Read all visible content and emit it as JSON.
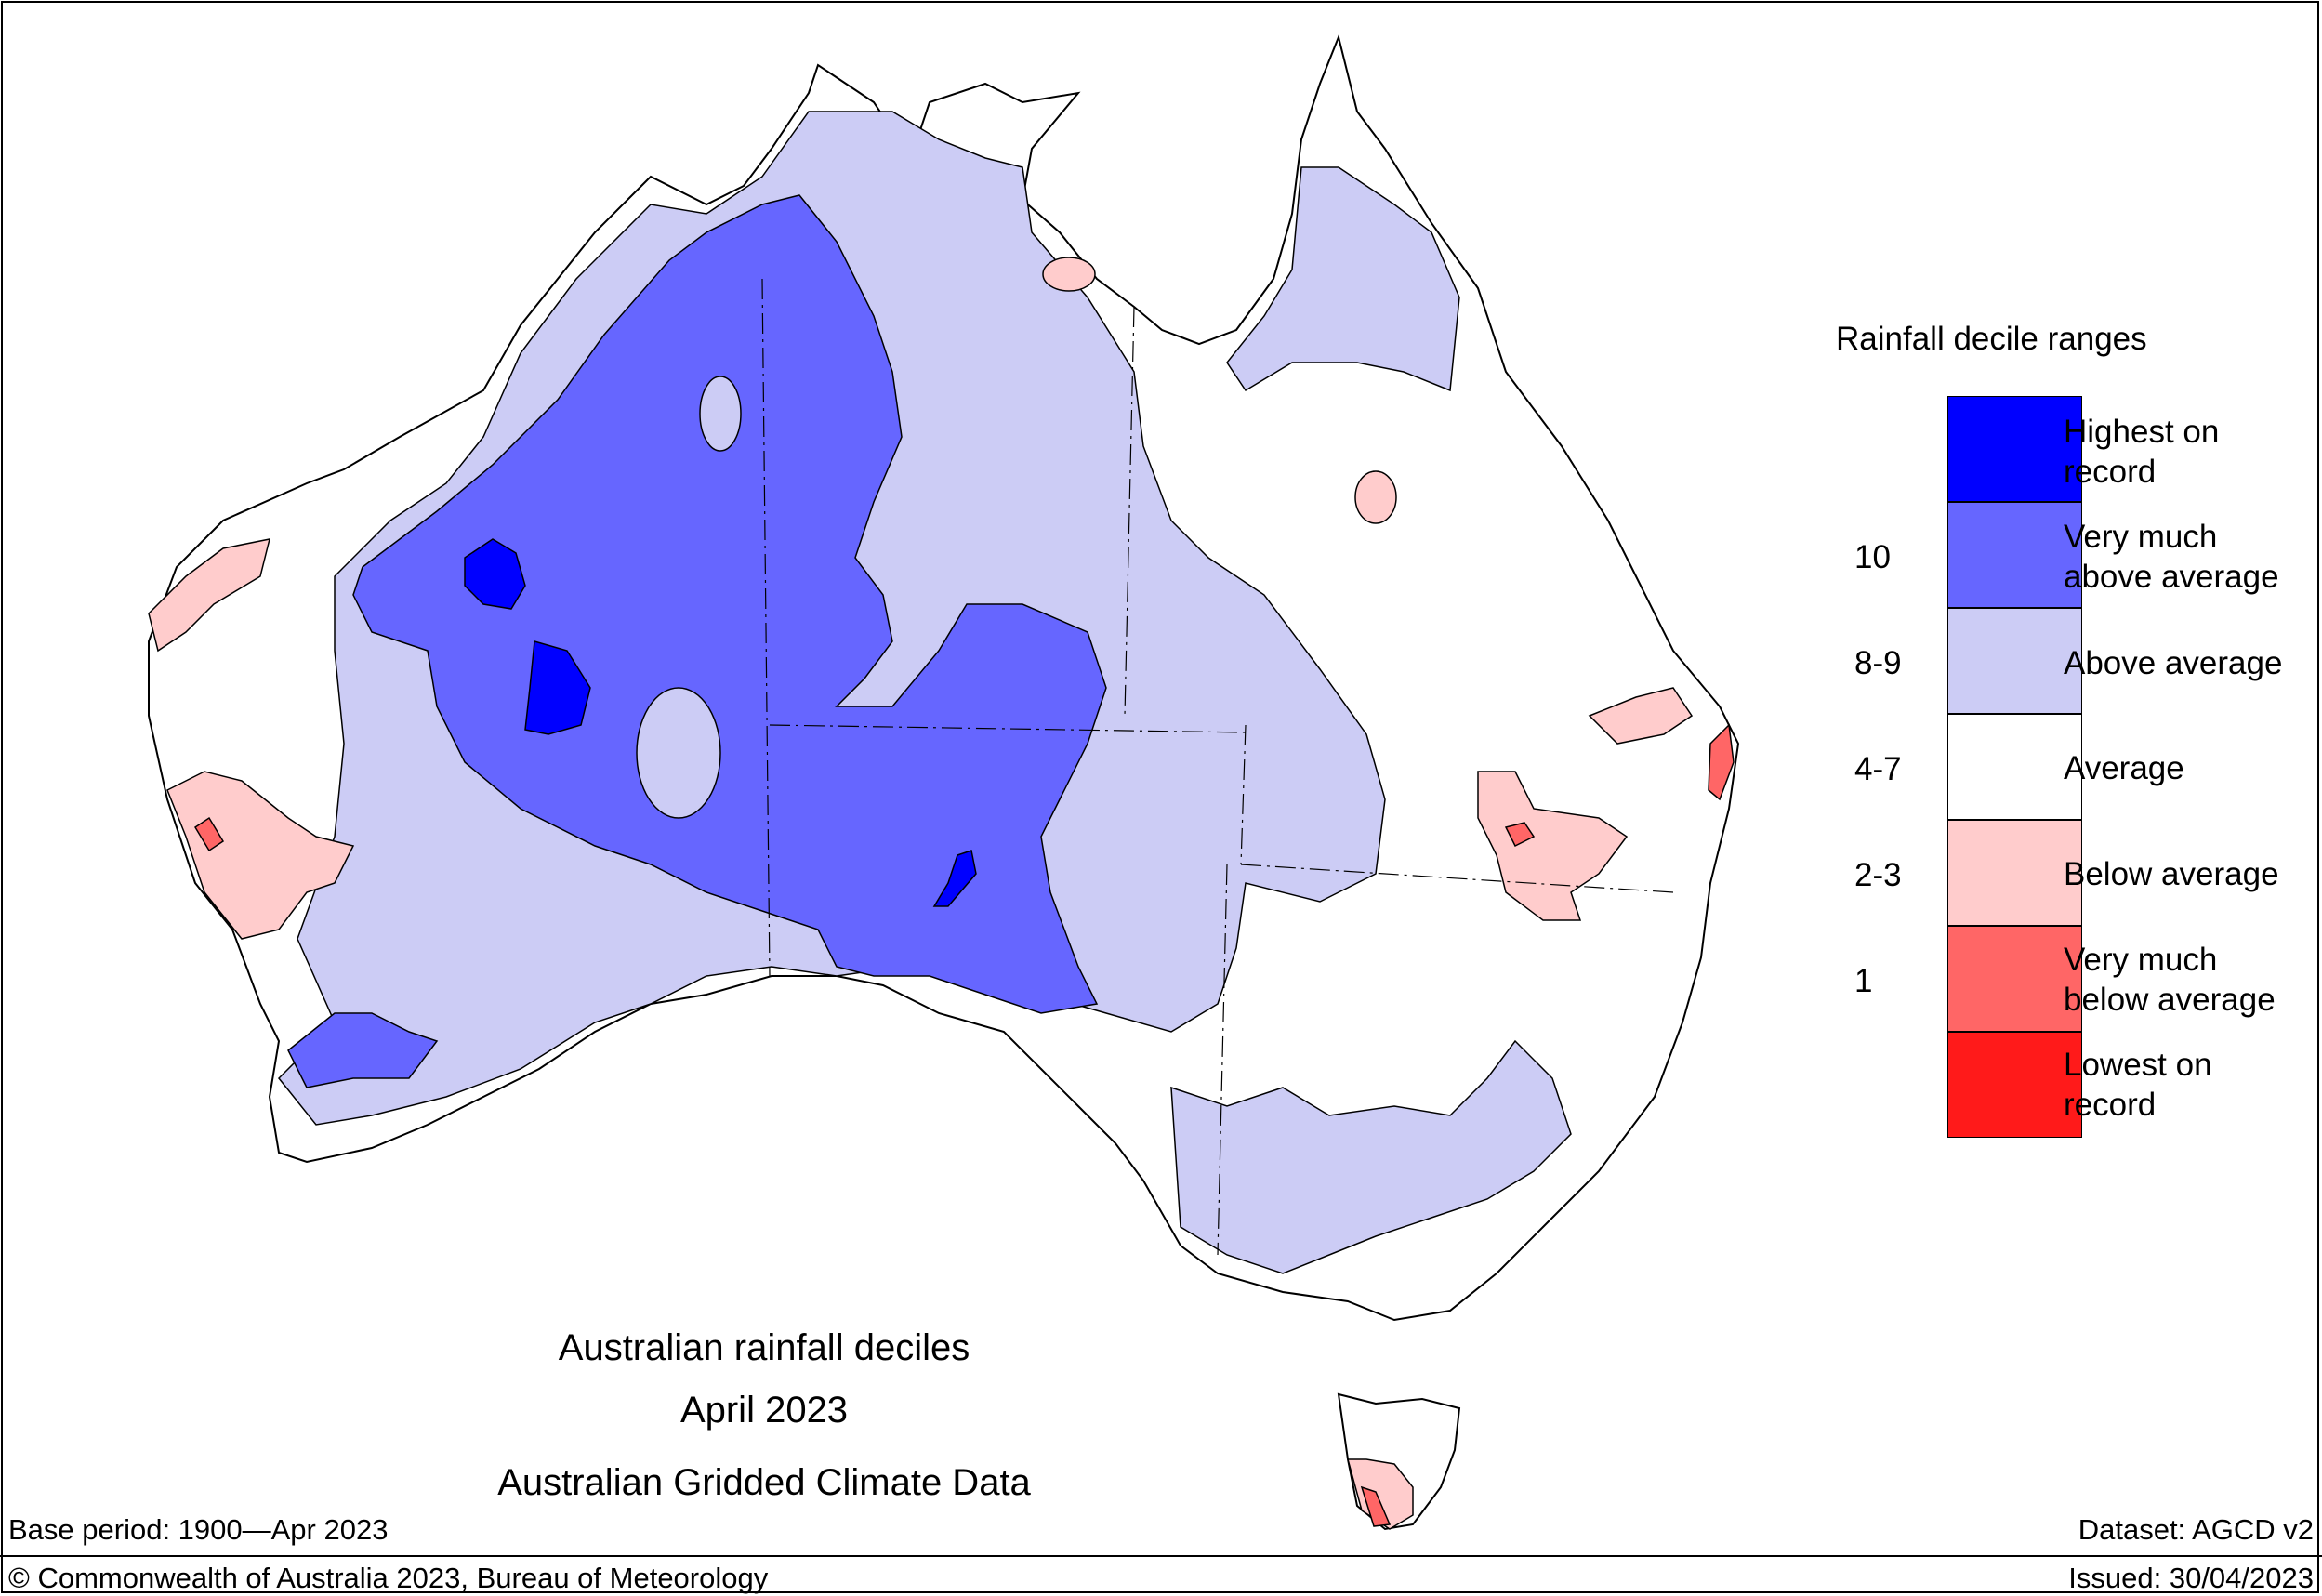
{
  "title": {
    "line1": "Australian rainfall deciles",
    "line2": "April 2023",
    "line3": "Australian Gridded Climate Data"
  },
  "legend": {
    "title": "Rainfall decile ranges",
    "entries": [
      {
        "label_line1": "Highest on",
        "label_line2": "record",
        "color": "#0000ff"
      },
      {
        "label_line1": "Very much",
        "label_line2": "above average",
        "color": "#6666ff"
      },
      {
        "label_line1": "Above average",
        "label_line2": "",
        "color": "#ccccf5"
      },
      {
        "label_line1": "Average",
        "label_line2": "",
        "color": "#ffffff"
      },
      {
        "label_line1": "Below average",
        "label_line2": "",
        "color": "#ffcccc"
      },
      {
        "label_line1": "Very much",
        "label_line2": "below average",
        "color": "#ff6666"
      },
      {
        "label_line1": "Lowest on",
        "label_line2": "record",
        "color": "#ff1a1a"
      }
    ],
    "deciles": [
      "10",
      "8-9",
      "4-7",
      "2-3",
      "1"
    ]
  },
  "footer": {
    "base_period": "Base period: 1900—Apr 2023",
    "dataset": "Dataset: AGCD v2",
    "copyright": "© Commonwealth of Australia 2023, Bureau of Meteorology",
    "issued": "Issued: 30/04/2023"
  }
}
